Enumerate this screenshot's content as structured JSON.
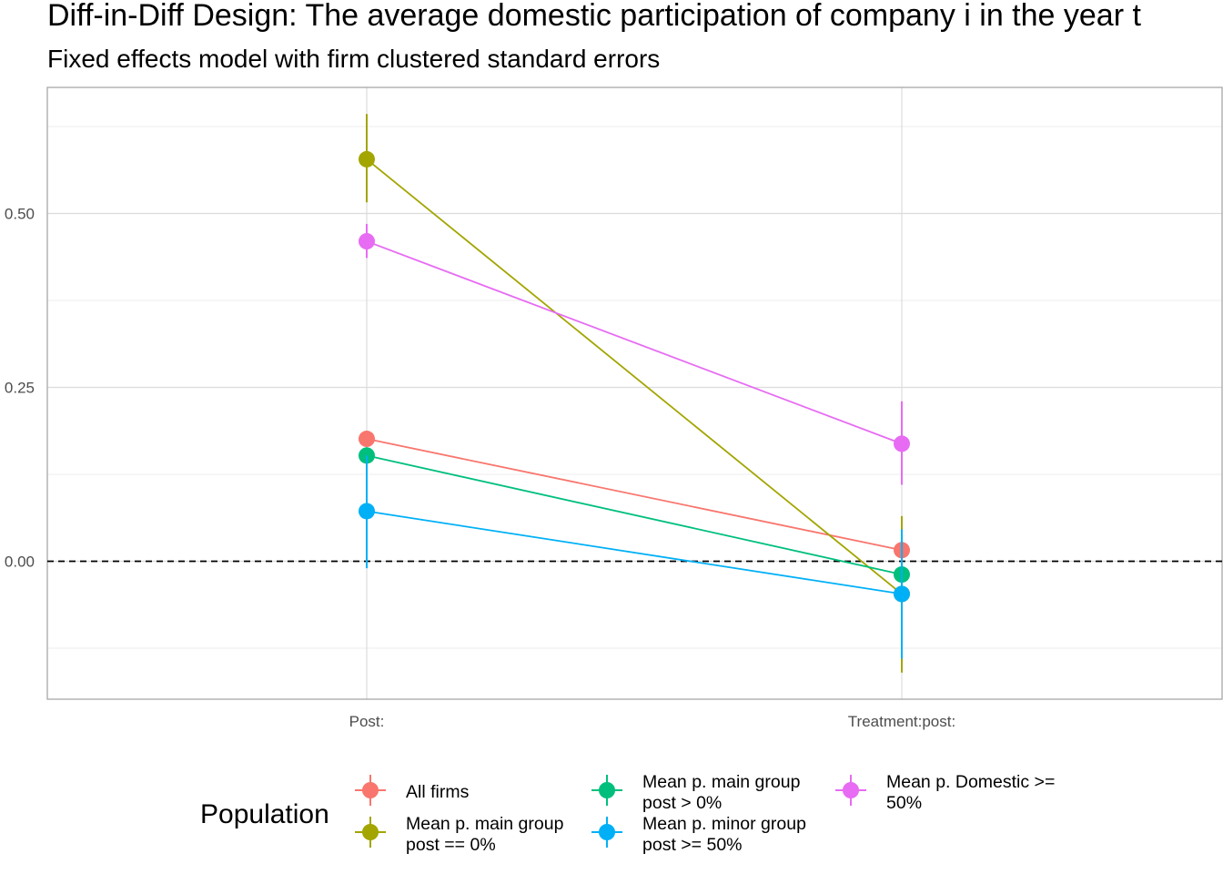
{
  "chart_data": {
    "type": "line",
    "title": "Diff-in-Diff Design: The average domestic participation of company i in the year t",
    "subtitle": "Fixed effects model with firm clustered standard errors",
    "categories": [
      "Post:",
      "Treatment:post:"
    ],
    "y_ticks": [
      "0.00",
      "0.25",
      "0.50"
    ],
    "y_tick_values": [
      0.0,
      0.25,
      0.5
    ],
    "ylim": [
      -0.2,
      0.68
    ],
    "reference_line": {
      "y": 0.0,
      "style": "dashed",
      "color": "#000000"
    },
    "grid": true,
    "legend": {
      "title": "Population",
      "placement": "bottom"
    },
    "series": [
      {
        "name": "All firms",
        "label_lines": [
          "All firms"
        ],
        "color": "#F8766D",
        "values": [
          0.176,
          0.016
        ],
        "lower": [
          0.166,
          0.004
        ],
        "upper": [
          0.186,
          0.028
        ]
      },
      {
        "name": "Mean p. main group post == 0%",
        "label_lines": [
          "Mean p. main group",
          "post == 0%"
        ],
        "color": "#A3A500",
        "values": [
          0.578,
          -0.047
        ],
        "lower": [
          0.516,
          -0.16
        ],
        "upper": [
          0.643,
          0.065
        ]
      },
      {
        "name": "Mean p. main group post > 0%",
        "label_lines": [
          "Mean p. main group",
          "post > 0%"
        ],
        "color": "#00BF7D",
        "values": [
          0.152,
          -0.019
        ],
        "lower": [
          0.14,
          -0.032
        ],
        "upper": [
          0.164,
          -0.006
        ]
      },
      {
        "name": "Mean p. minor group post >= 50%",
        "label_lines": [
          "Mean p. minor group",
          "post >= 50%"
        ],
        "color": "#00B0F6",
        "values": [
          0.072,
          -0.047
        ],
        "lower": [
          -0.01,
          -0.14
        ],
        "upper": [
          0.152,
          0.046
        ]
      },
      {
        "name": "Mean p. Domestic >= 50%",
        "label_lines": [
          "Mean p. Domestic >=",
          "50%"
        ],
        "color": "#E76BF3",
        "values": [
          0.46,
          0.169
        ],
        "lower": [
          0.436,
          0.11
        ],
        "upper": [
          0.485,
          0.23
        ]
      }
    ]
  }
}
